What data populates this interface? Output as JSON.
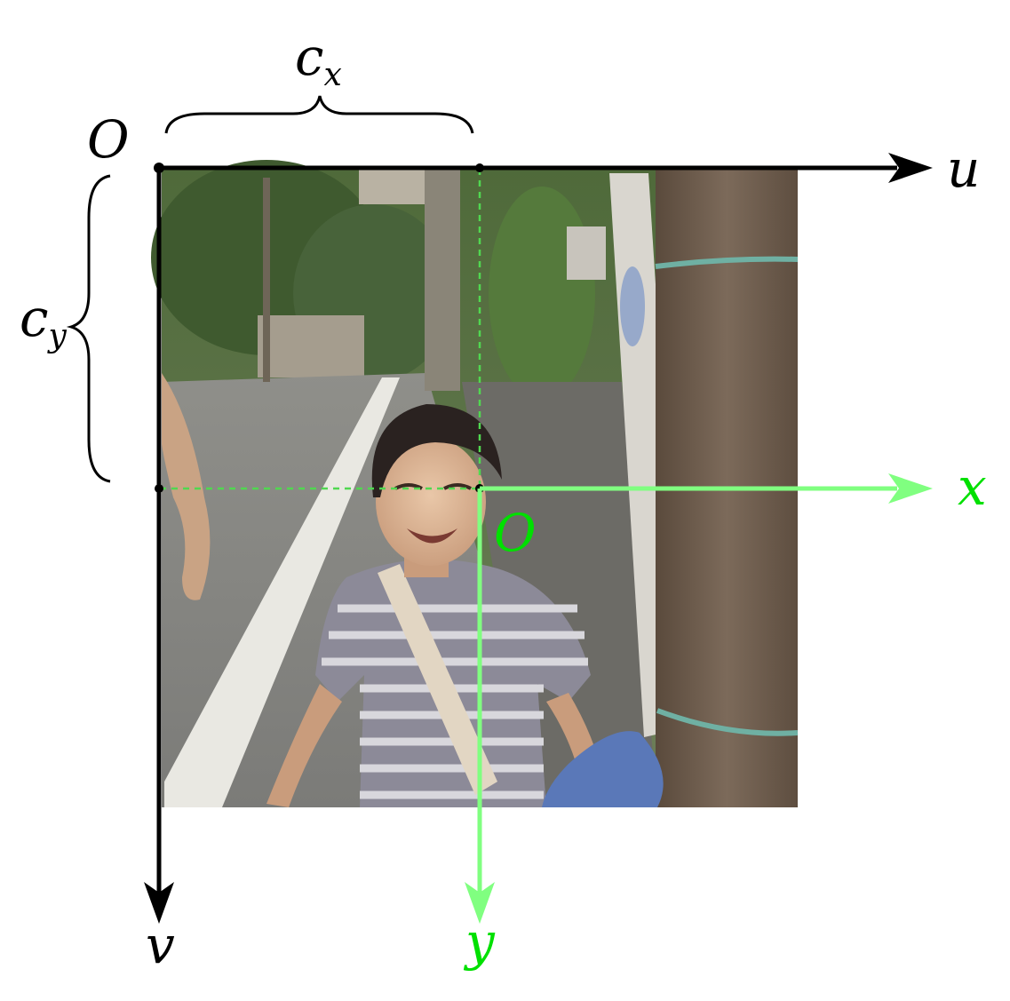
{
  "labels": {
    "image_origin": "O",
    "u_axis": "u",
    "v_axis": "v",
    "cx": "c",
    "cx_sub": "x",
    "cy": "c",
    "cy_sub": "y",
    "camera_origin": "O",
    "x_axis": "x",
    "y_axis": "y"
  },
  "colors": {
    "image_axes": "#000000",
    "camera_axes": "#80ff80",
    "camera_labels": "#00e000",
    "guide_lines": "#40d040"
  },
  "photo": {
    "description_icon": "photo-of-smiling-child-on-street"
  }
}
